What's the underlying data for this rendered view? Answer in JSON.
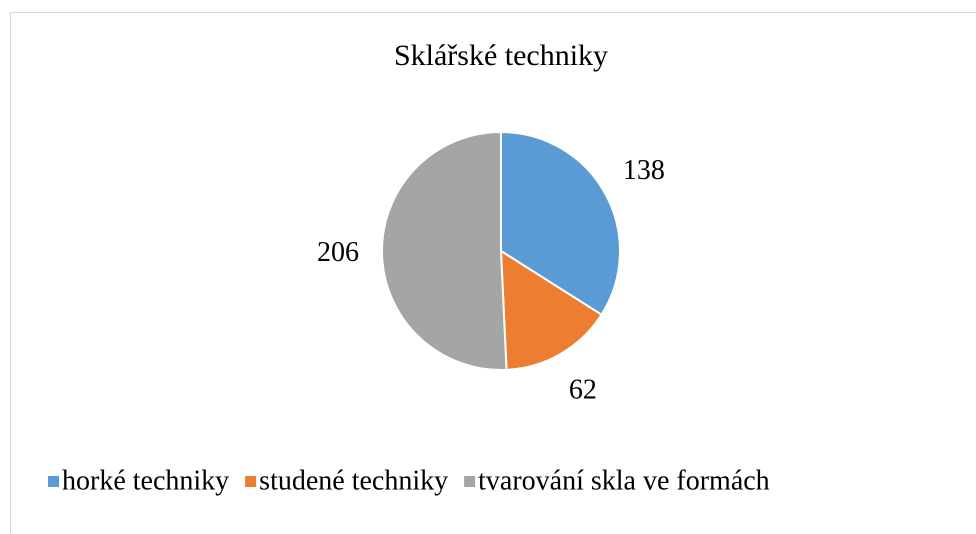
{
  "chart_data": {
    "type": "pie",
    "title": "Sklářské techniky",
    "categories": [
      "horké techniky",
      "studené techniky",
      "tvarování skla ve formách"
    ],
    "values": [
      138,
      62,
      206
    ],
    "colors": [
      "#5b9bd5",
      "#ed7d31",
      "#a5a5a5"
    ],
    "legend": "bottom"
  }
}
